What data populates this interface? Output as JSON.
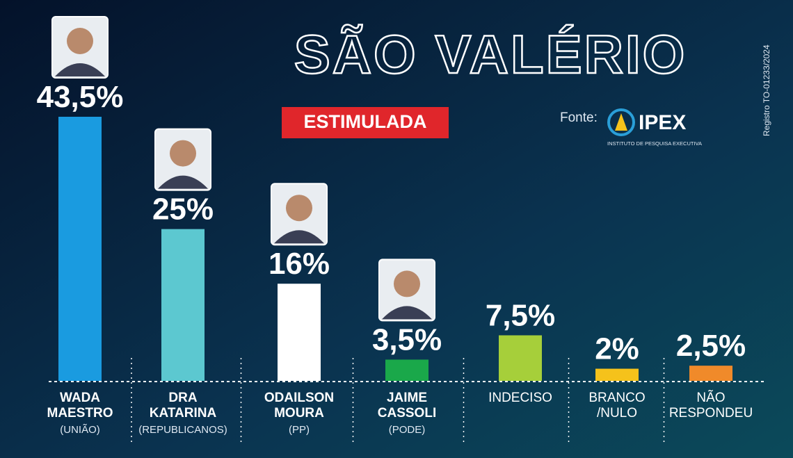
{
  "chart_data": {
    "type": "bar",
    "title": "SÃO VALÉRIO",
    "subtitle": "ESTIMULADA",
    "source_label": "Fonte:",
    "source": "IPEX",
    "source_full": "INSTITUTO DE PESQUISA EXECUTIVA",
    "registration": "Registro TO-01233/2024",
    "categories": [
      "WADA MAESTRO",
      "DRA KATARINA",
      "ODAILSON MOURA",
      "JAIME CASSOLI",
      "INDECISO",
      "BRANCO /NULO",
      "NÃO RESPONDEU"
    ],
    "parties": [
      "(UNIÃO)",
      "(REPUBLICANOS)",
      "(PP)",
      "(PODE)",
      null,
      null,
      null
    ],
    "values": [
      43.5,
      25,
      16,
      3.5,
      7.5,
      2,
      2.5
    ],
    "value_labels": [
      "43,5%",
      "25%",
      "16%",
      "3,5%",
      "7,5%",
      "2%",
      "2,5%"
    ],
    "colors": [
      "#1a9be0",
      "#5cc8d0",
      "#ffffff",
      "#1aa84a",
      "#a6cf3a",
      "#f5c21b",
      "#f08a2a"
    ]
  }
}
